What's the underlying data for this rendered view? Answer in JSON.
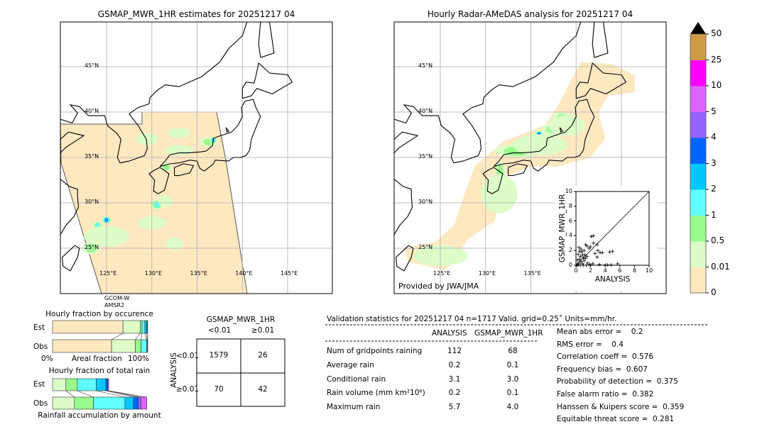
{
  "left_map": {
    "title": "GSMAP_MWR_1HR estimates for 20251217 04",
    "sensor_label_1": "GCOM-W",
    "sensor_label_2": "AMSR2"
  },
  "right_map": {
    "title": "Hourly Radar-AMeDAS analysis for 20251217 04",
    "credit": "Provided by JWA/JMA"
  },
  "map_axes": {
    "lat_labels": [
      "45°N",
      "40°N",
      "35°N",
      "30°N",
      "25°N"
    ],
    "lon_labels": [
      "125°E",
      "130°E",
      "135°E",
      "140°E",
      "145°E"
    ]
  },
  "colorbar": {
    "ticks": [
      "0",
      "0.01",
      "0.5",
      "1",
      "2",
      "3",
      "4",
      "5",
      "10",
      "25",
      "50"
    ],
    "colors": [
      "#fee8c0",
      "#dcfcc8",
      "#99fa8c",
      "#60fefe",
      "#00c8ff",
      "#0064ff",
      "#9664ff",
      "#dc64ff",
      "#ff00ff",
      "#cd9b46"
    ],
    "extend_color": "#000000"
  },
  "occurrence": {
    "title": "Hourly fraction by occurence",
    "est_label": "Est",
    "obs_label": "Obs",
    "xlabel": "Areal fraction",
    "x_min_label": "0%",
    "x_max_label": "100%"
  },
  "total_rain": {
    "title": "Hourly fraction of total rain",
    "est_label": "Est",
    "obs_label": "Obs",
    "xlabel": "Rainfall accumulation by amount"
  },
  "contingency": {
    "title": "GSMAP_MWR_1HR",
    "col_labels": [
      "<0.01",
      "≥0.01"
    ],
    "row_axis_label": "ANALYSIS",
    "row_labels": [
      "<0.01",
      "≥0.01"
    ],
    "cells": [
      [
        "1579",
        "26"
      ],
      [
        "70",
        "42"
      ]
    ]
  },
  "validation": {
    "title": "Validation statistics for 20251217 04  n=1717 Valid. grid=0.25˚ Units=mm/hr.",
    "col_headers": [
      "ANALYSIS",
      "GSMAP_MWR_1HR"
    ],
    "rows": [
      {
        "label": "Num of gridpoints raining",
        "analysis": "112",
        "gsmap": "68"
      },
      {
        "label": "Average rain",
        "analysis": "0.2",
        "gsmap": "0.1"
      },
      {
        "label": "Conditional rain",
        "analysis": "3.1",
        "gsmap": "3.0"
      },
      {
        "label": "Rain volume (mm km²10⁶)",
        "analysis": "0.2",
        "gsmap": "0.1"
      },
      {
        "label": "Maximum rain",
        "analysis": "5.7",
        "gsmap": "4.0"
      }
    ],
    "scores": [
      "Mean abs error =    0.2",
      "RMS error =    0.4",
      "Correlation coeff =  0.576",
      "Frequency bias =  0.607",
      "Probability of detection =  0.375",
      "False alarm ratio =  0.382",
      "Hanssen & Kuipers score =  0.359",
      "Equitable threat score =  0.281"
    ]
  },
  "chart_data": [
    {
      "type": "scatter",
      "xlabel": "ANALYSIS",
      "ylabel": "GSMAP_MWR_1HR",
      "xlim": [
        0,
        10
      ],
      "ylim": [
        0,
        10
      ],
      "ticks": [
        "0",
        "2",
        "4",
        "6",
        "8",
        "10"
      ],
      "marker": "+",
      "diagonal": true,
      "points": [
        [
          0.2,
          0.1
        ],
        [
          0.4,
          0.3
        ],
        [
          0.5,
          0.8
        ],
        [
          0.6,
          1.2
        ],
        [
          0.7,
          0.5
        ],
        [
          0.8,
          1.8
        ],
        [
          0.9,
          0.2
        ],
        [
          1.0,
          1.0
        ],
        [
          1.1,
          0.6
        ],
        [
          1.2,
          1.4
        ],
        [
          0.3,
          1.5
        ],
        [
          0.5,
          1.9
        ],
        [
          0.7,
          2.2
        ],
        [
          1.3,
          0.9
        ],
        [
          1.5,
          1.2
        ],
        [
          1.6,
          0.3
        ],
        [
          1.8,
          2.3
        ],
        [
          2.0,
          2.5
        ],
        [
          2.1,
          3.9
        ],
        [
          2.4,
          4.0
        ],
        [
          1.3,
          2.8
        ],
        [
          1.5,
          2.6
        ],
        [
          2.4,
          3.0
        ],
        [
          2.9,
          2.8
        ],
        [
          2.6,
          1.6
        ],
        [
          3.0,
          2.0
        ],
        [
          3.3,
          1.7
        ],
        [
          2.9,
          1.1
        ],
        [
          3.6,
          1.7
        ],
        [
          4.6,
          1.8
        ],
        [
          5.0,
          1.9
        ],
        [
          2.3,
          0.2
        ],
        [
          3.2,
          0.1
        ],
        [
          4.0,
          0.05
        ],
        [
          4.3,
          0.05
        ],
        [
          4.8,
          0.05
        ],
        [
          5.7,
          0.2
        ],
        [
          0.1,
          0.0
        ],
        [
          0.3,
          0.0
        ],
        [
          0.6,
          0.0
        ],
        [
          1.0,
          0.0
        ],
        [
          1.4,
          0.0
        ],
        [
          1.9,
          0.1
        ],
        [
          0.2,
          0.7
        ],
        [
          0.9,
          1.4
        ],
        [
          1.1,
          2.0
        ],
        [
          0.4,
          2.4
        ]
      ]
    },
    {
      "type": "bar",
      "title": "Hourly fraction by occurence",
      "categories": [
        "Est",
        "Obs"
      ],
      "bins": [
        "0-0.01",
        "0.01-0.5",
        "0.5-1",
        "1-2",
        "2-3",
        "3-4"
      ],
      "series": [
        {
          "name": "Est",
          "values": [
            0.74,
            0.18,
            0.02,
            0.03,
            0.02,
            0.01
          ]
        },
        {
          "name": "Obs",
          "values": [
            0.62,
            0.25,
            0.06,
            0.06,
            0.005,
            0.005
          ]
        }
      ]
    },
    {
      "type": "bar",
      "title": "Hourly fraction of total rain",
      "categories": [
        "Est",
        "Obs"
      ],
      "bins": [
        "0.01-0.5",
        "0.5-1",
        "1-2",
        "2-3",
        "3-4",
        "4-5",
        "5-10"
      ],
      "series": [
        {
          "name": "Est",
          "values": [
            0.14,
            0.12,
            0.2,
            0.1,
            0.02,
            0.01,
            0.0
          ]
        },
        {
          "name": "Obs",
          "values": [
            0.23,
            0.2,
            0.33,
            0.09,
            0.05,
            0.03,
            0.06
          ]
        }
      ]
    }
  ]
}
